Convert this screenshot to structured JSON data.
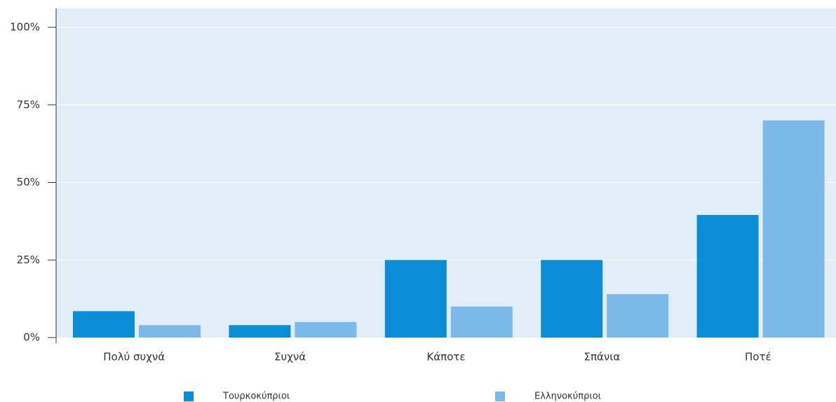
{
  "chart_data": {
    "type": "bar",
    "categories": [
      "Πολύ συχνά",
      "Συχνά",
      "Κάποτε",
      "Σπάνια",
      "Ποτέ"
    ],
    "series": [
      {
        "name": "Τουρκοκύπριοι",
        "color": "#0a8cd7",
        "values": [
          8.5,
          4,
          25,
          25,
          39.5
        ]
      },
      {
        "name": "Ελληνοκύπριοι",
        "color": "#7bbae8",
        "values": [
          4,
          5,
          10,
          14,
          70
        ]
      }
    ],
    "ylim": [
      0,
      100
    ],
    "yticks": [
      {
        "value": 0,
        "label": "0%"
      },
      {
        "value": 25,
        "label": "25%"
      },
      {
        "value": 50,
        "label": "50%"
      },
      {
        "value": 75,
        "label": "75%"
      },
      {
        "value": 100,
        "label": "100%"
      }
    ],
    "grid": true,
    "legend": "bottom"
  }
}
